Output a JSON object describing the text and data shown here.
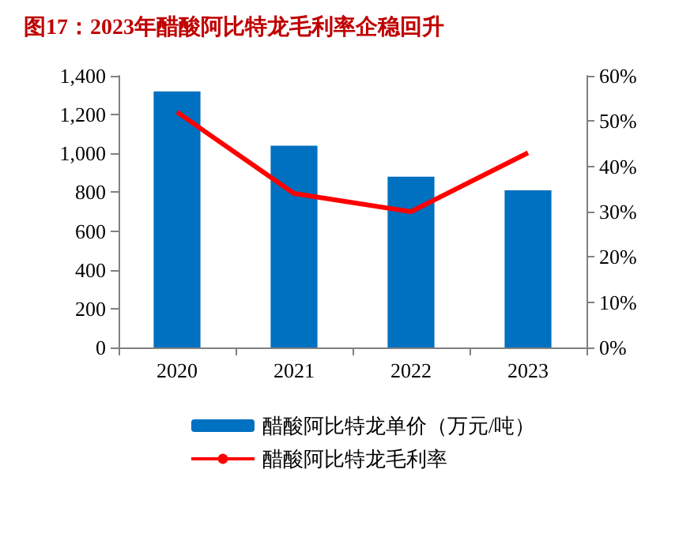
{
  "chart_data": {
    "type": "bar",
    "title": "图17：2023年醋酸阿比特龙毛利率企稳回升",
    "categories": [
      "2020",
      "2021",
      "2022",
      "2023"
    ],
    "series": [
      {
        "name": "醋酸阿比特龙单价（万元/吨）",
        "color": "#0070c0",
        "values": [
          1320,
          1040,
          880,
          810
        ]
      },
      {
        "name": "醋酸阿比特龙毛利率",
        "type": "line",
        "axis": "y2",
        "color": "#ff0000",
        "values": [
          52,
          34,
          30,
          43
        ],
        "marker": "none"
      }
    ],
    "ylim": [
      0,
      1400
    ],
    "yticks": [
      0,
      200,
      400,
      600,
      800,
      {
        "value": 1000,
        "label": "1,000"
      },
      {
        "value": 1200,
        "label": "1,200"
      },
      {
        "value": 1400,
        "label": "1,400"
      }
    ],
    "y2lim": [
      0,
      60
    ],
    "y2ticks": [
      {
        "value": 0,
        "label": "0%"
      },
      {
        "value": 10,
        "label": "10%"
      },
      {
        "value": 20,
        "label": "20%"
      },
      {
        "value": 30,
        "label": "30%"
      },
      {
        "value": 40,
        "label": "40%"
      },
      {
        "value": 50,
        "label": "50%"
      },
      {
        "value": 60,
        "label": "60%"
      }
    ],
    "grid": false,
    "legend": "bottom"
  }
}
